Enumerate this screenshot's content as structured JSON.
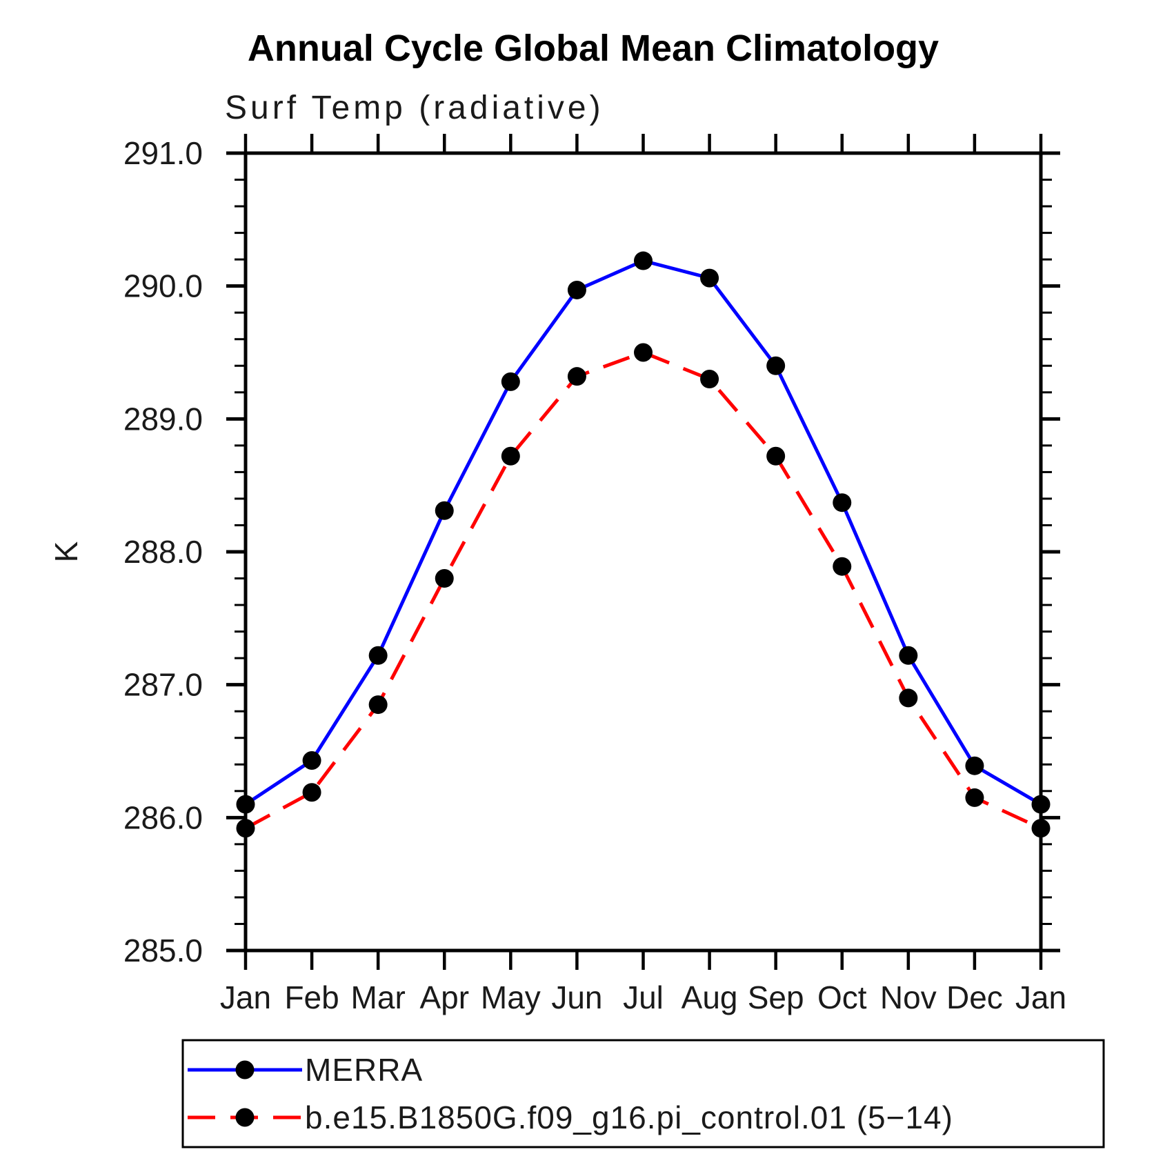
{
  "title": "Annual Cycle Global Mean Climatology",
  "subtitle": "Surf Temp (radiative)",
  "ylabel": "K",
  "chart_data": {
    "type": "line",
    "categories": [
      "Jan",
      "Feb",
      "Mar",
      "Apr",
      "May",
      "Jun",
      "Jul",
      "Aug",
      "Sep",
      "Oct",
      "Nov",
      "Dec",
      "Jan"
    ],
    "xlabel": "",
    "ylabel": "K",
    "ylim": [
      285.0,
      291.0
    ],
    "ytick_interval": 1.0,
    "yminor_interval": 0.2,
    "ytick_labels": [
      "285.0",
      "286.0",
      "287.0",
      "288.0",
      "289.0",
      "290.0",
      "291.0"
    ],
    "grid": false,
    "legend_position": "bottom",
    "frame_color": "#000000",
    "marker_color": "#000000",
    "series": [
      {
        "name": "MERRA",
        "color": "#0000ff",
        "style": "solid",
        "marker": "circle",
        "values": [
          286.1,
          286.43,
          287.22,
          288.31,
          289.28,
          289.97,
          290.19,
          290.06,
          289.4,
          288.37,
          287.22,
          286.39,
          286.1
        ]
      },
      {
        "name": "b.e15.B1850G.f09_g16.pi_control.01 (5−14)",
        "color": "#ff0000",
        "style": "dashed",
        "marker": "circle",
        "values": [
          285.92,
          286.19,
          286.85,
          287.8,
          288.72,
          289.32,
          289.5,
          289.3,
          288.72,
          287.89,
          286.9,
          286.15,
          285.92
        ]
      }
    ]
  }
}
